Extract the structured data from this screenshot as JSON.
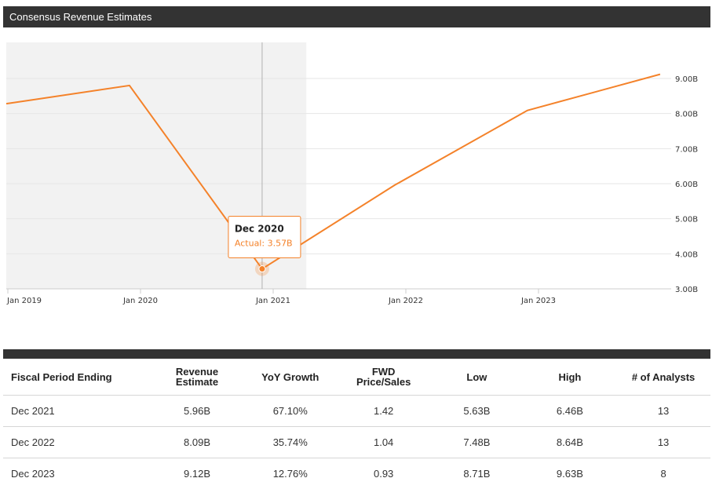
{
  "header": {
    "title": "Consensus Revenue Estimates"
  },
  "colors": {
    "line": "#f4822a",
    "header_bg": "#333333",
    "shaded_bg": "#f2f2f2",
    "grid": "#e6e6e6"
  },
  "chart_data": {
    "type": "line",
    "title": "Consensus Revenue Estimates",
    "x_ticks": [
      "Jan 2019",
      "Jan 2020",
      "Jan 2021",
      "Jan 2022",
      "Jan 2023"
    ],
    "y_ticks": [
      "3.00B",
      "4.00B",
      "5.00B",
      "6.00B",
      "7.00B",
      "8.00B",
      "9.00B"
    ],
    "ylim": [
      3.0,
      9.0
    ],
    "y_unit": "B",
    "series": [
      {
        "points": [
          {
            "x": "2018-12",
            "y": 8.28
          },
          {
            "x": "2019-12",
            "y": 8.8
          },
          {
            "x": "2020-12",
            "y": 3.57
          },
          {
            "x": "2021-12",
            "y": 5.96
          },
          {
            "x": "2022-12",
            "y": 8.09
          },
          {
            "x": "2023-12",
            "y": 9.12
          }
        ]
      }
    ],
    "shaded_region": {
      "from": "2018-12",
      "to": "2021-04",
      "label": "actual"
    },
    "grid": true,
    "y_axis_side": "right",
    "tooltip": {
      "x": "2020-12",
      "title": "Dec 2020",
      "text": "Actual: 3.57B"
    }
  },
  "table": {
    "headers": [
      "Fiscal Period Ending",
      "Revenue\nEstimate",
      "YoY Growth",
      "FWD\nPrice/Sales",
      "Low",
      "High",
      "# of Analysts"
    ],
    "rows": [
      [
        "Dec 2021",
        "5.96B",
        "67.10%",
        "1.42",
        "5.63B",
        "6.46B",
        "13"
      ],
      [
        "Dec 2022",
        "8.09B",
        "35.74%",
        "1.04",
        "7.48B",
        "8.64B",
        "13"
      ],
      [
        "Dec 2023",
        "9.12B",
        "12.76%",
        "0.93",
        "8.71B",
        "9.63B",
        "8"
      ]
    ]
  }
}
